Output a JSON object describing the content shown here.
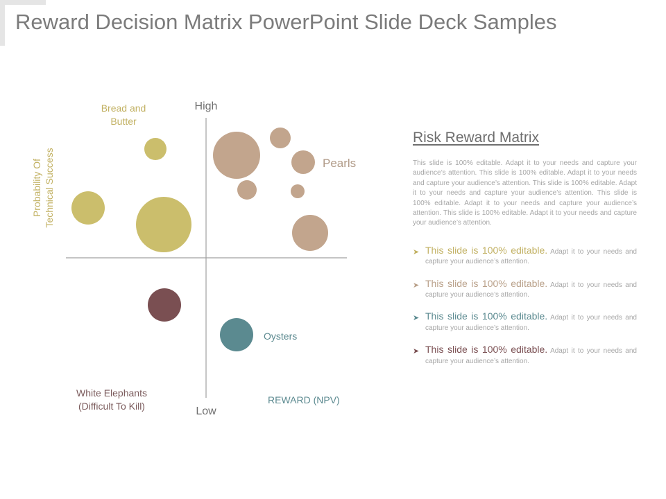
{
  "slide": {
    "title": "Reward Decision Matrix PowerPoint Slide Deck Samples"
  },
  "matrix": {
    "axis_high": "High",
    "axis_low": "Low",
    "y_axis_label_line1": "Probability Of",
    "y_axis_label_line2": "Technical Success",
    "x_axis_label": "REWARD (NPV)",
    "quadrants": {
      "top_left_line1": "Bread and",
      "top_left_line2": "Butter",
      "top_right": "Pearls",
      "bottom_left_line1": "White Elephants",
      "bottom_left_line2": "(Difficult To Kill)",
      "bottom_right": "Oysters"
    },
    "colors": {
      "gold": "#cbbe6c",
      "tan": "#c2a58d",
      "maroon": "#7a4f52",
      "teal": "#5b8a90",
      "axis": "#a0a0a0"
    }
  },
  "panel": {
    "title": "Risk Reward Matrix",
    "body": "This slide is 100% editable. Adapt it to your needs and capture your audience’s attention. This slide is 100% editable. Adapt it to your needs and capture your audience’s attention. This slide is 100% editable. Adapt it to your needs and capture your audience’s attention. This slide is 100% editable. Adapt it to your needs and capture your audience’s attention. This slide is 100% editable. Adapt it to your needs and capture your audience’s attention.",
    "bullets": [
      {
        "head": "This slide is 100% editable.",
        "text": " Adapt it to your needs and capture your audience’s attention.",
        "color": "#c2b163"
      },
      {
        "head": "This slide is 100% editable.",
        "text": " Adapt it to your needs and capture your audience’s attention.",
        "color": "#b9a089"
      },
      {
        "head": "This slide is 100% editable.",
        "text": " Adapt it to your needs and capture your audience’s attention.",
        "color": "#5b8a90"
      },
      {
        "head": "This slide is 100% editable.",
        "text": " Adapt it to your needs and capture your audience’s attention.",
        "color": "#7a4f52"
      }
    ]
  }
}
